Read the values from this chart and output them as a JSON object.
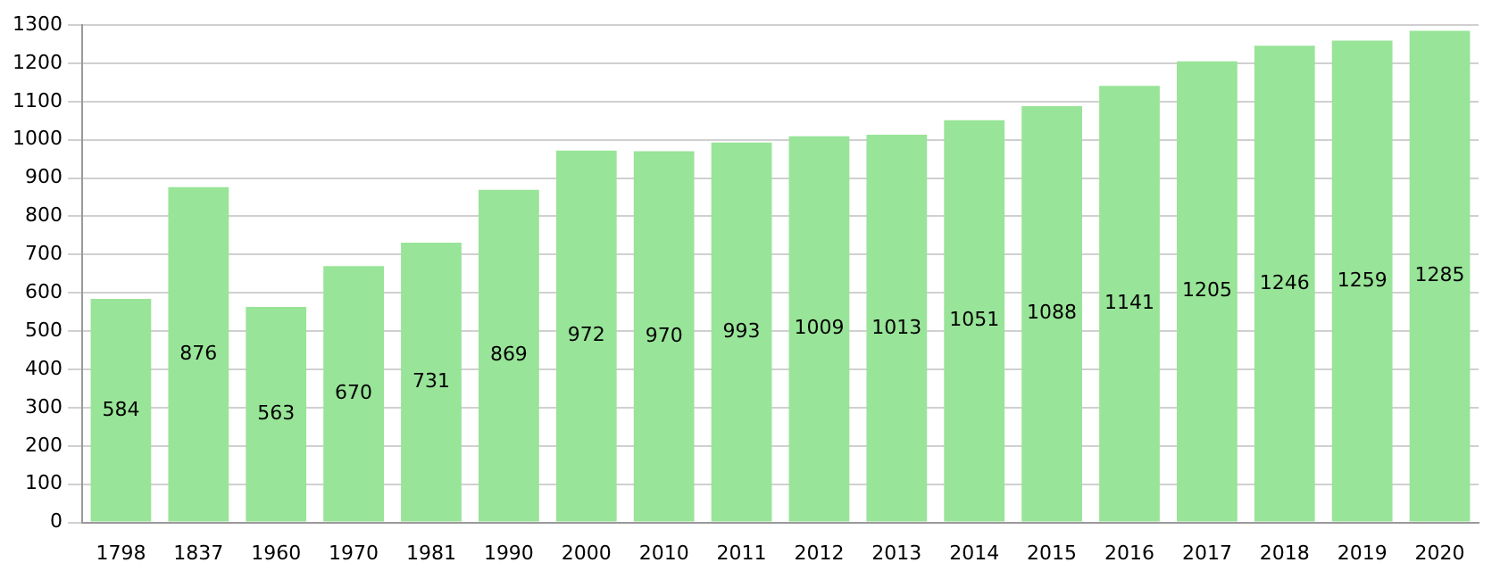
{
  "chart_data": {
    "type": "bar",
    "categories": [
      "1798",
      "1837",
      "1960",
      "1970",
      "1981",
      "1990",
      "2000",
      "2010",
      "2011",
      "2012",
      "2013",
      "2014",
      "2015",
      "2016",
      "2017",
      "2018",
      "2019",
      "2020"
    ],
    "values": [
      584,
      876,
      563,
      670,
      731,
      869,
      972,
      970,
      993,
      1009,
      1013,
      1051,
      1088,
      1141,
      1205,
      1246,
      1259,
      1285
    ],
    "color": "#98e498",
    "ylim": [
      0,
      1300
    ],
    "yticks": [
      0,
      100,
      200,
      300,
      400,
      500,
      600,
      700,
      800,
      900,
      1000,
      1100,
      1200,
      1300
    ],
    "grid": "y",
    "data_labels": true,
    "legend": false
  }
}
